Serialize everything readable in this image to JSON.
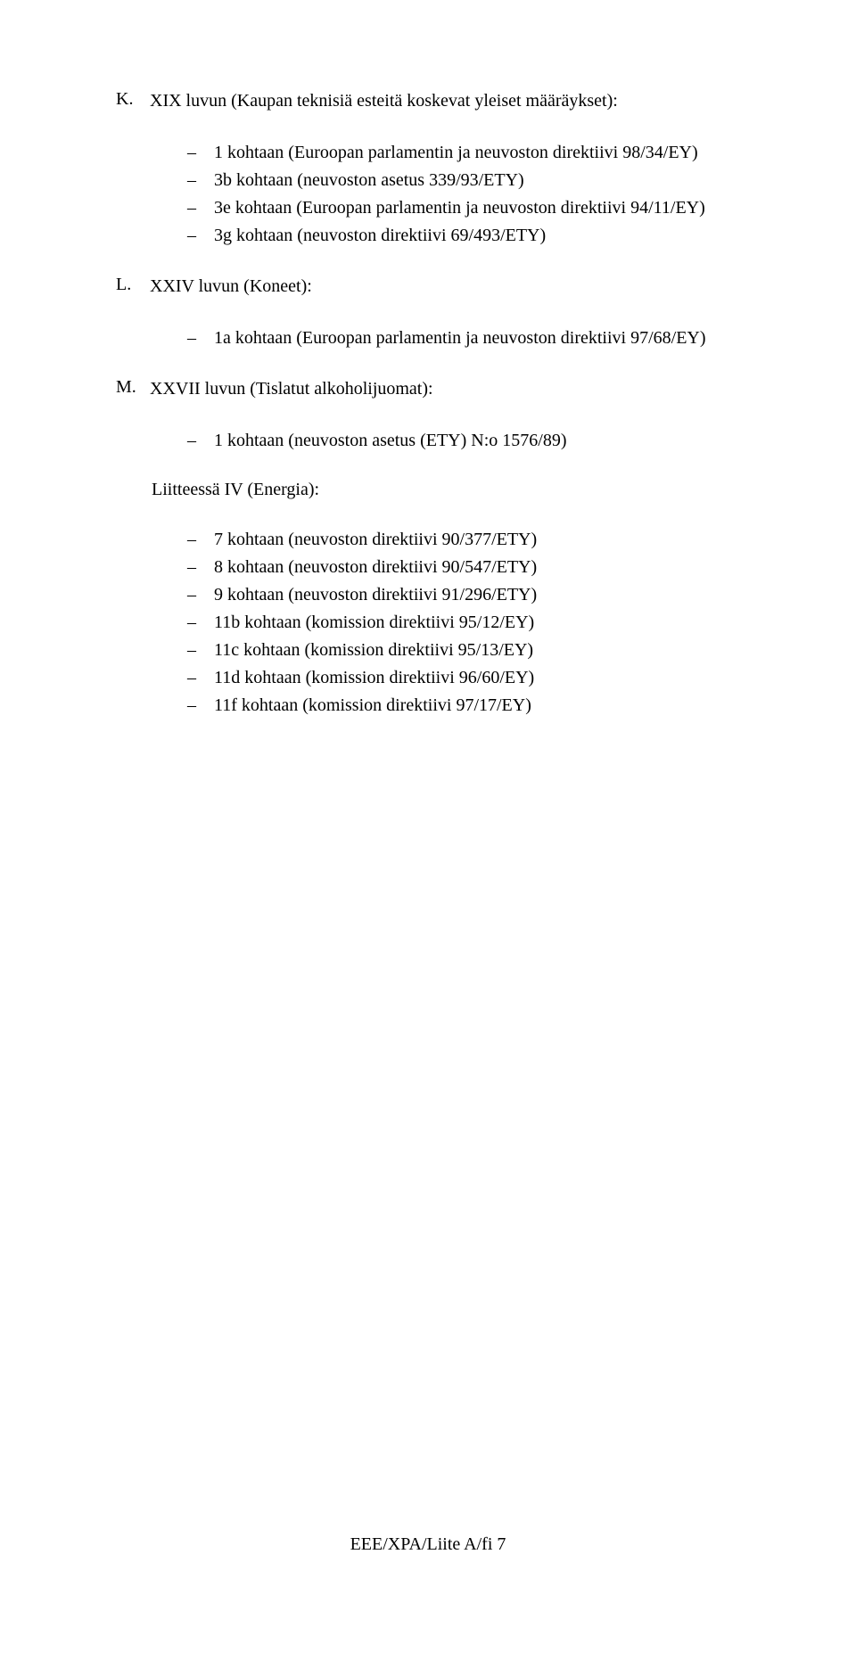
{
  "items": [
    {
      "key": "K.",
      "title": "XIX luvun (Kaupan teknisiä esteitä koskevat yleiset määräykset):",
      "dashes": [
        "1 kohtaan (Euroopan parlamentin ja neuvoston direktiivi 98/34/EY)",
        "3b kohtaan (neuvoston asetus 339/93/ETY)",
        "3e kohtaan (Euroopan parlamentin ja neuvoston direktiivi 94/11/EY)",
        "3g kohtaan (neuvoston direktiivi 69/493/ETY)"
      ]
    },
    {
      "key": "L.",
      "title": "XXIV luvun (Koneet):",
      "dashes": [
        "1a kohtaan (Euroopan parlamentin ja neuvoston direktiivi 97/68/EY)"
      ]
    },
    {
      "key": "M.",
      "title": "XXVII luvun (Tislatut alkoholijuomat):",
      "dashes": [
        "1 kohtaan (neuvoston asetus (ETY) N:o 1576/89)"
      ]
    }
  ],
  "subsection": {
    "heading": "Liitteessä IV (Energia):",
    "dashes": [
      "7 kohtaan (neuvoston direktiivi 90/377/ETY)",
      "8 kohtaan (neuvoston direktiivi 90/547/ETY)",
      "9 kohtaan (neuvoston direktiivi 91/296/ETY)",
      "11b kohtaan (komission direktiivi 95/12/EY)",
      "11c kohtaan (komission direktiivi 95/13/EY)",
      "11d kohtaan (komission direktiivi 96/60/EY)",
      "11f kohtaan (komission direktiivi 97/17/EY)"
    ]
  },
  "footer": "EEE/XPA/Liite A/fi 7",
  "dash": "–"
}
